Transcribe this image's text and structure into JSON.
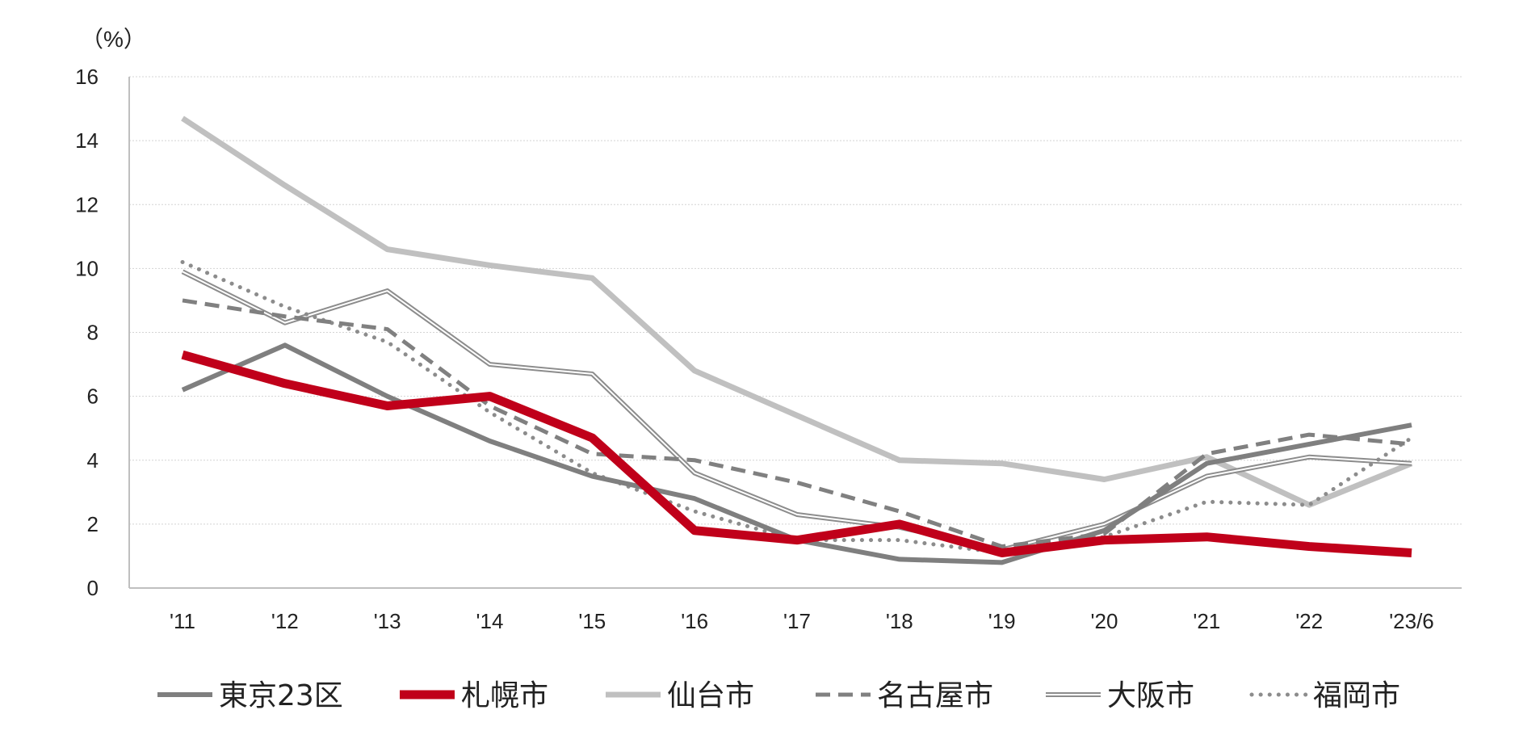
{
  "chart_data": {
    "type": "line",
    "unit_label": "（%）",
    "ylim": [
      0,
      16
    ],
    "yticks": [
      0,
      2,
      4,
      6,
      8,
      10,
      12,
      14,
      16
    ],
    "grid": true,
    "legend_position": "bottom",
    "categories": [
      "'11",
      "'12",
      "'13",
      "'14",
      "'15",
      "'16",
      "'17",
      "'18",
      "'19",
      "'20",
      "'21",
      "'22",
      "'23/6"
    ],
    "series": [
      {
        "name": "東京23区",
        "style": "solid",
        "color": "#7f7f7f",
        "values": [
          6.2,
          7.6,
          6.0,
          4.6,
          3.5,
          2.8,
          1.5,
          0.9,
          0.8,
          1.8,
          3.9,
          4.5,
          5.1
        ]
      },
      {
        "name": "札幌市",
        "style": "solid-bold",
        "color": "#c0001a",
        "values": [
          7.3,
          6.4,
          5.7,
          6.0,
          4.7,
          1.8,
          1.5,
          2.0,
          1.1,
          1.5,
          1.6,
          1.3,
          1.1
        ]
      },
      {
        "name": "仙台市",
        "style": "solid-light",
        "color": "#c0c0c0",
        "values": [
          14.7,
          12.6,
          10.6,
          10.1,
          9.7,
          6.8,
          5.4,
          4.0,
          3.9,
          3.4,
          4.1,
          2.6,
          3.9
        ]
      },
      {
        "name": "名古屋市",
        "style": "dashed",
        "color": "#808080",
        "values": [
          9.0,
          8.5,
          8.1,
          5.7,
          4.2,
          4.0,
          3.3,
          2.4,
          1.3,
          1.7,
          4.2,
          4.8,
          4.5
        ]
      },
      {
        "name": "大阪市",
        "style": "double",
        "color": "#8c8c8c",
        "values": [
          9.9,
          8.3,
          9.3,
          7.0,
          6.7,
          3.6,
          2.3,
          1.9,
          1.2,
          2.0,
          3.5,
          4.1,
          3.9
        ]
      },
      {
        "name": "福岡市",
        "style": "dotted",
        "color": "#8c8c8c",
        "values": [
          10.2,
          8.8,
          7.7,
          5.5,
          3.6,
          2.4,
          1.5,
          1.5,
          1.1,
          1.6,
          2.7,
          2.6,
          4.7
        ]
      }
    ]
  }
}
